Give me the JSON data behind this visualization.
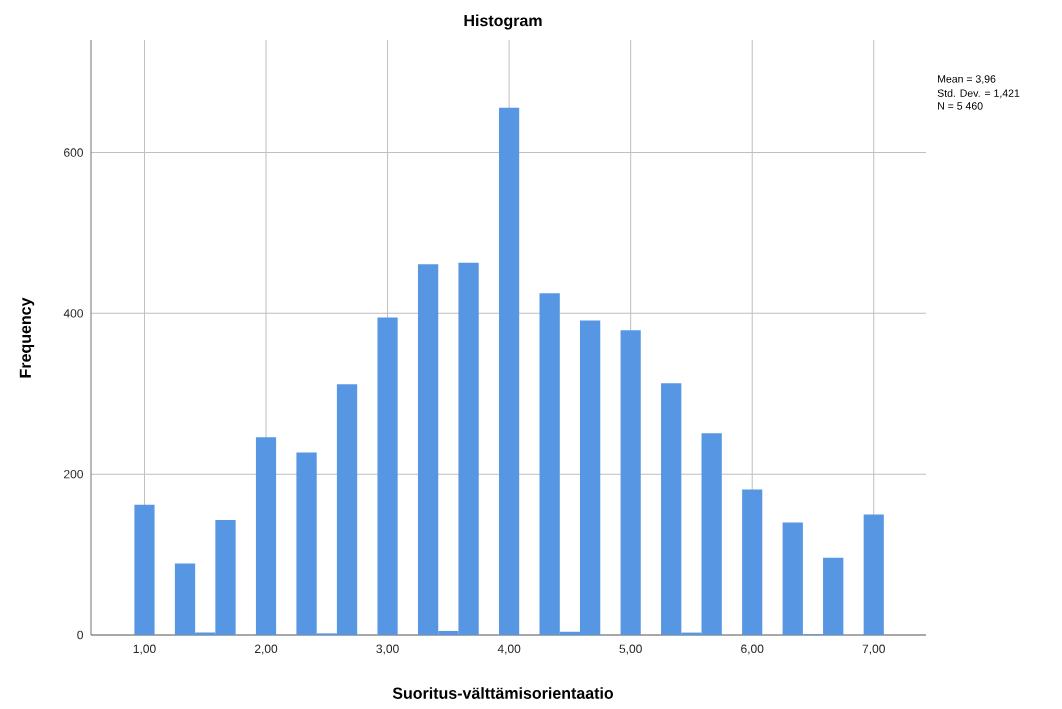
{
  "chart_data": {
    "type": "histogram",
    "title": "Histogram",
    "xlabel": "Suoritus-välttämisorientaatio",
    "ylabel": "Frequency",
    "bins": [
      0.917,
      1.083,
      1.25,
      1.417,
      1.583,
      1.75,
      1.917,
      2.083,
      2.25,
      2.417,
      2.583,
      2.75,
      2.917,
      3.083,
      3.25,
      3.417,
      3.583,
      3.75,
      3.917,
      4.083,
      4.25,
      4.417,
      4.583,
      4.75,
      4.917,
      5.083,
      5.25,
      5.417,
      5.583,
      5.75,
      5.917,
      6.083,
      6.25,
      6.417,
      6.583,
      6.75,
      6.917,
      7.083
    ],
    "values": [
      162,
      0,
      89,
      3,
      143,
      0,
      246,
      0,
      227,
      2,
      312,
      0,
      395,
      0,
      461,
      5,
      463,
      0,
      656,
      0,
      425,
      4,
      391,
      0,
      379,
      0,
      313,
      3,
      251,
      0,
      181,
      0,
      140,
      1,
      96,
      0,
      150
    ],
    "color": "#5796e3",
    "xlim": [
      0.56,
      7.43
    ],
    "xticks": [
      {
        "value": 1,
        "label": "1,00"
      },
      {
        "value": 2,
        "label": "2,00"
      },
      {
        "value": 3,
        "label": "3,00"
      },
      {
        "value": 4,
        "label": "4,00"
      },
      {
        "value": 5,
        "label": "5,00"
      },
      {
        "value": 6,
        "label": "6,00"
      },
      {
        "value": 7,
        "label": "7,00"
      }
    ],
    "ylim": [
      0,
      740
    ],
    "yticks": [
      0,
      200,
      400,
      600
    ],
    "grid": true,
    "annotations": [
      "Mean = 3,96",
      "Std. Dev. = 1,421",
      "N = 5 460"
    ]
  }
}
